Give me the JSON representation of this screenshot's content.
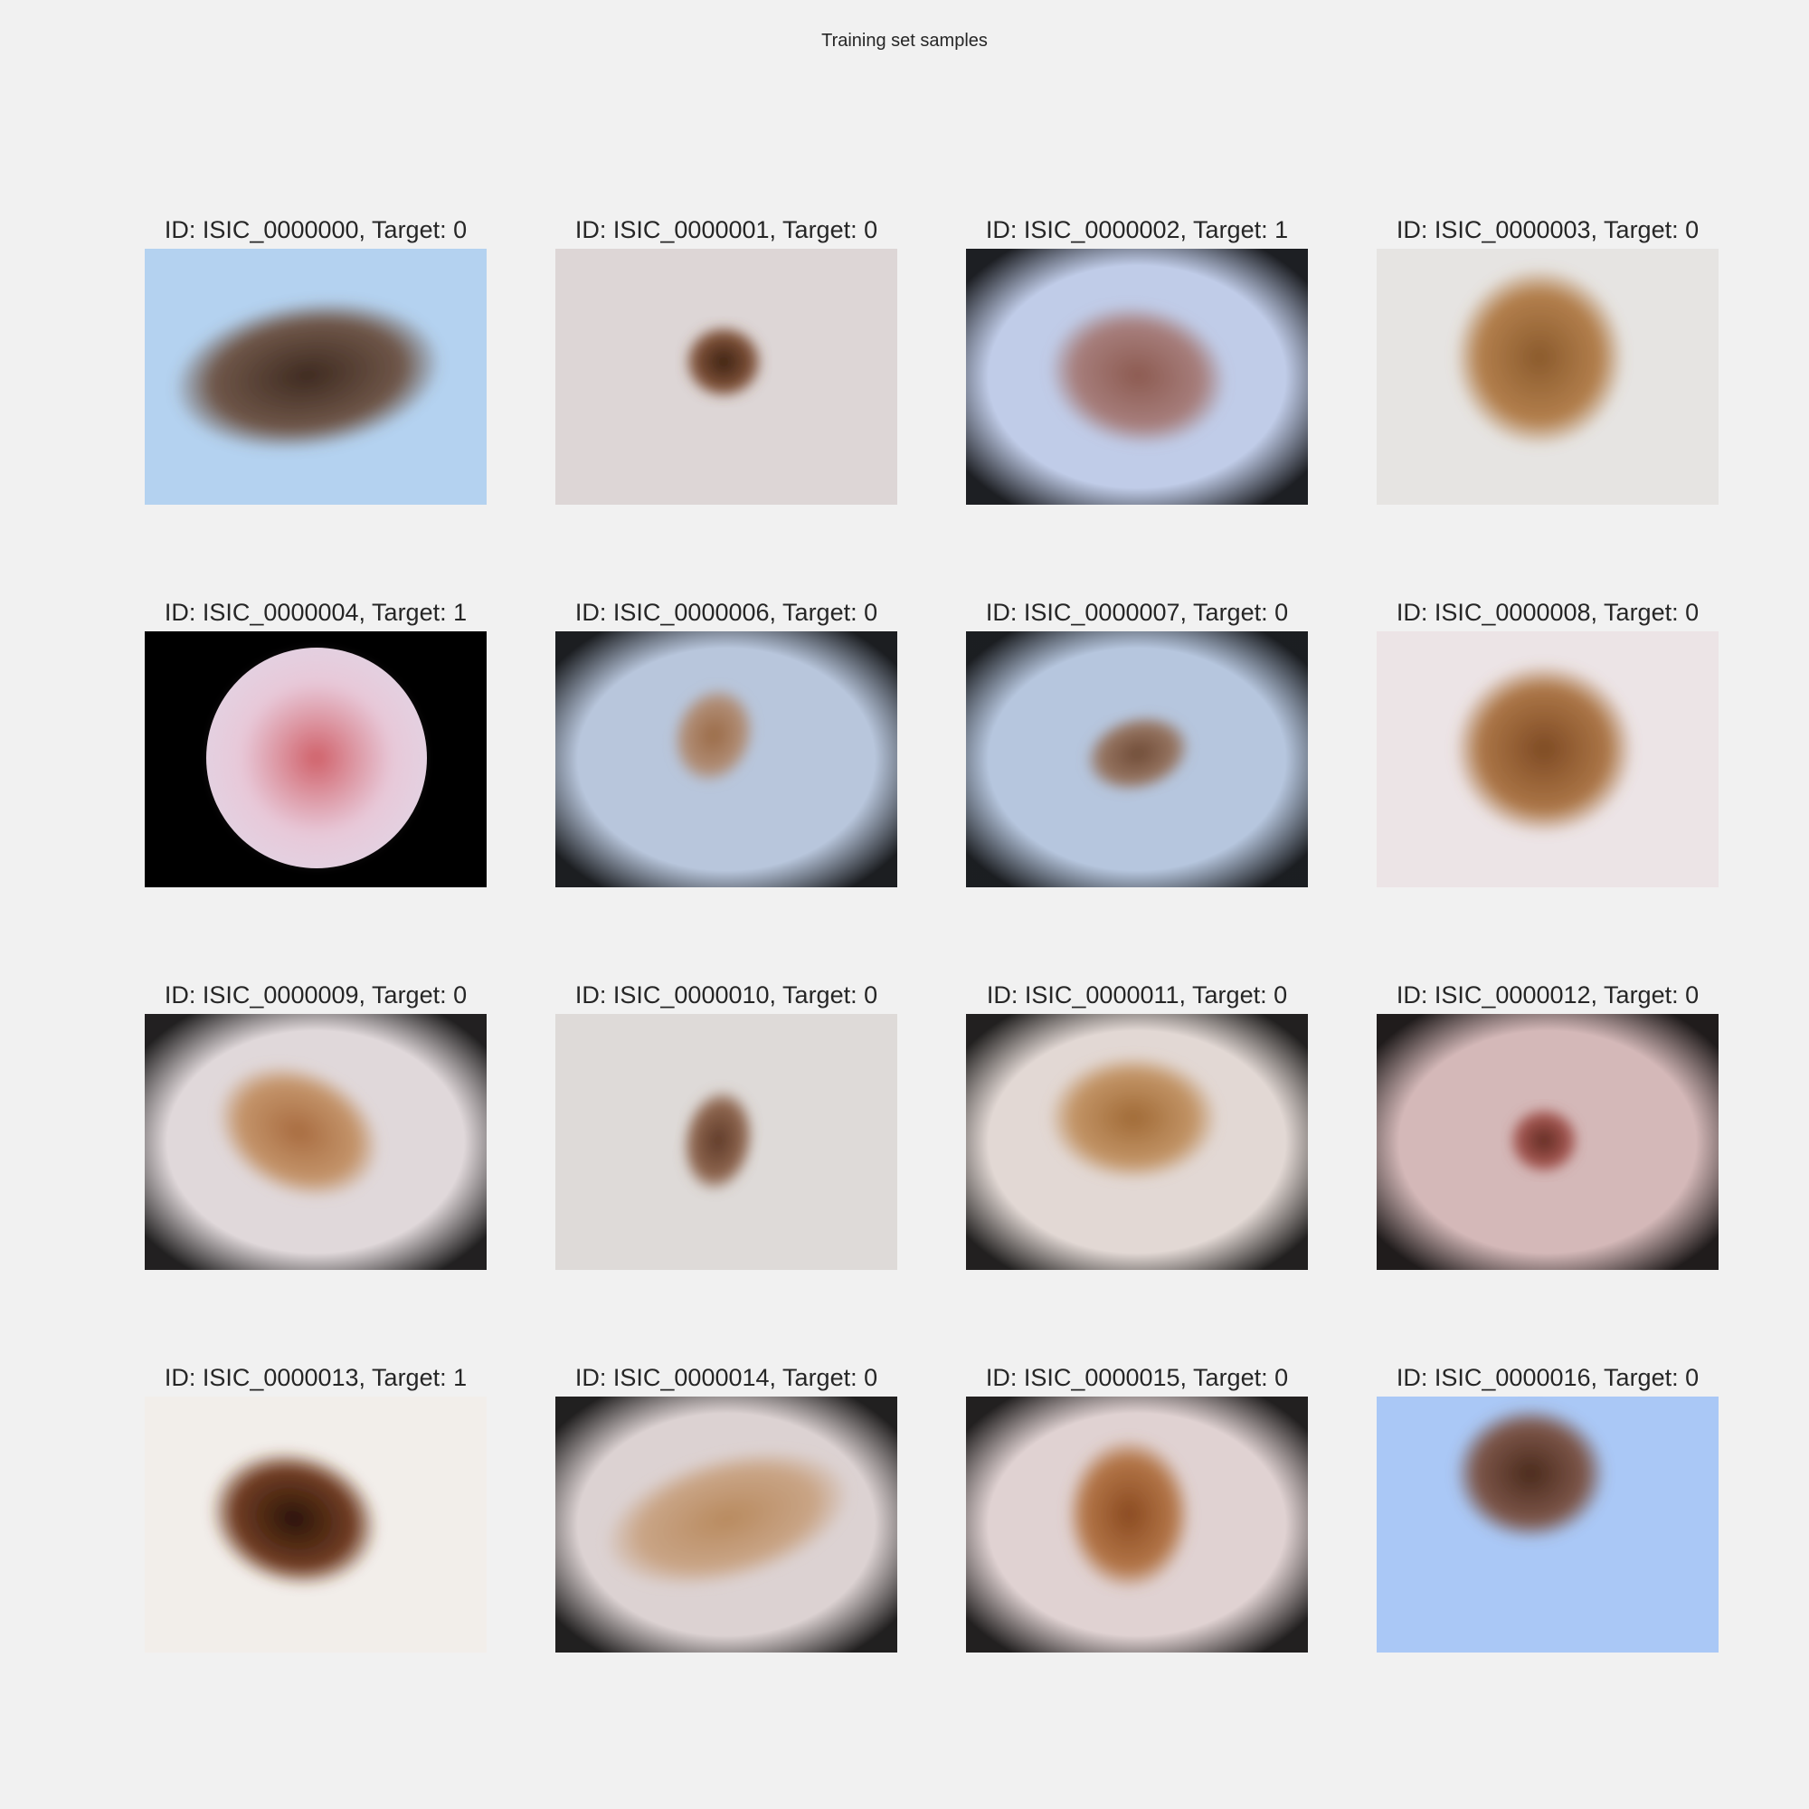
{
  "figure": {
    "title": "Training set samples"
  },
  "samples": [
    {
      "label": "ID: ISIC_0000000, Target: 0",
      "bg": "#b4d2f0",
      "vignette": false,
      "lesion": "#3e2a20",
      "rim": "#6b5040"
    },
    {
      "label": "ID: ISIC_0000001, Target: 0",
      "bg": "#ddd6d6",
      "vignette": false,
      "lesion": "#3a2012",
      "rim": "#7a4a30"
    },
    {
      "label": "ID: ISIC_0000002, Target: 1",
      "bg": "#c0cce8",
      "vignette": true,
      "lesion": "#8c5a50",
      "rim": "#a57a76"
    },
    {
      "label": "ID: ISIC_0000003, Target: 0",
      "bg": "#e6e4e2",
      "vignette": false,
      "lesion": "#8a5a2c",
      "rim": "#b07a45"
    },
    {
      "label": "ID: ISIC_0000004, Target: 1",
      "bg": "#000000",
      "vignette": false,
      "lesion": "#d06068",
      "rim": "#e8c8d8"
    },
    {
      "label": "ID: ISIC_0000006, Target: 0",
      "bg": "#b8c6dc",
      "vignette": true,
      "lesion": "#9a6a45",
      "rim": "#b08a70"
    },
    {
      "label": "ID: ISIC_0000007, Target: 0",
      "bg": "#b6c6de",
      "vignette": true,
      "lesion": "#6e4a35",
      "rim": "#94705a"
    },
    {
      "label": "ID: ISIC_0000008, Target: 0",
      "bg": "#ece4e6",
      "vignette": false,
      "lesion": "#7e4a24",
      "rim": "#a8703e"
    },
    {
      "label": "ID: ISIC_0000009, Target: 0",
      "bg": "#e0d8da",
      "vignette": true,
      "lesion": "#a86c40",
      "rim": "#c29064"
    },
    {
      "label": "ID: ISIC_0000010, Target: 0",
      "bg": "#dedad8",
      "vignette": false,
      "lesion": "#5e3a28",
      "rim": "#8a6048"
    },
    {
      "label": "ID: ISIC_0000011, Target: 0",
      "bg": "#e2d8d4",
      "vignette": true,
      "lesion": "#a06a36",
      "rim": "#c09060"
    },
    {
      "label": "ID: ISIC_0000012, Target: 0",
      "bg": "#d4b8b8",
      "vignette": true,
      "lesion": "#5e2a20",
      "rim": "#a0504a"
    },
    {
      "label": "ID: ISIC_0000013, Target: 1",
      "bg": "#f2eeea",
      "vignette": false,
      "lesion": "#2a1408",
      "rim": "#6a3418"
    },
    {
      "label": "ID: ISIC_0000014, Target: 0",
      "bg": "#dcd2d2",
      "vignette": true,
      "lesion": "#b88a5e",
      "rim": "#c8a282"
    },
    {
      "label": "ID: ISIC_0000015, Target: 0",
      "bg": "#e0d2d2",
      "vignette": true,
      "lesion": "#8a4a20",
      "rim": "#b07040"
    },
    {
      "label": "ID: ISIC_0000016, Target: 0",
      "bg": "#aac8f6",
      "vignette": false,
      "lesion": "#4a2a1c",
      "rim": "#7a5040"
    }
  ]
}
